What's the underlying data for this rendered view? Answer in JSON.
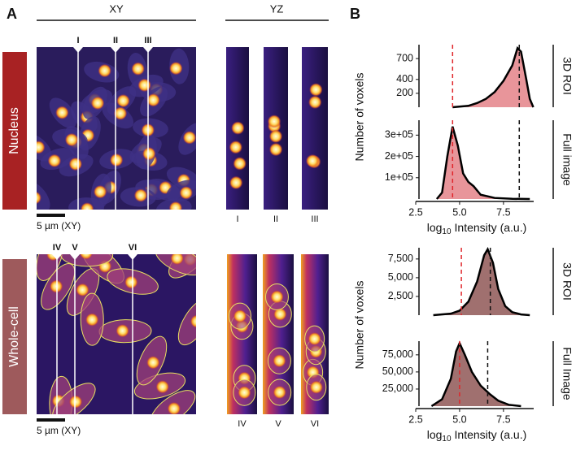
{
  "panel_labels": [
    "A",
    "B"
  ],
  "left": {
    "xy_label": "XY",
    "yz_label": "YZ",
    "rows": [
      {
        "label": "Nucleus",
        "scale_bar": "5 µm (XY)",
        "xy_markers": [
          "I",
          "II",
          "III"
        ],
        "yz_labels": [
          "I",
          "II",
          "III"
        ]
      },
      {
        "label": "Whole-cell",
        "scale_bar": "5 µm (XY)",
        "xy_markers": [
          "IV",
          "V",
          "VI"
        ],
        "yz_labels": [
          "IV",
          "V",
          "VI"
        ]
      }
    ]
  },
  "chart_data": [
    {
      "type": "area",
      "y_label": "Number of voxels",
      "side_label": "3D ROI",
      "color": "#e8959a",
      "x": [
        4.6,
        5.5,
        6.0,
        6.5,
        7.0,
        7.5,
        8.0,
        8.3,
        8.5,
        8.8,
        9.0,
        9.2
      ],
      "values": [
        0,
        20,
        60,
        120,
        220,
        380,
        600,
        850,
        800,
        400,
        120,
        0
      ],
      "xlim": [
        2.5,
        9.5
      ],
      "ylim": [
        0,
        900
      ],
      "yticks": [
        200,
        400,
        700
      ],
      "reference_lines": [
        {
          "value": 4.6,
          "color": "#e0262b"
        },
        {
          "value": 8.4,
          "color": "#111111"
        }
      ]
    },
    {
      "type": "area",
      "side_label": "Full image",
      "color": "#e8959a",
      "x": [
        3.7,
        4.0,
        4.3,
        4.6,
        4.9,
        5.2,
        5.5,
        5.8,
        6.2,
        7.0,
        8.0,
        9.0
      ],
      "values": [
        0,
        30000,
        200000,
        340000,
        250000,
        120000,
        80000,
        60000,
        20000,
        5000,
        1000,
        0
      ],
      "xlim": [
        2.5,
        9.5
      ],
      "ylim": [
        0,
        370000
      ],
      "yticks": [
        {
          "value": 100000,
          "label": "1e+05"
        },
        {
          "value": 200000,
          "label": "2e+05"
        },
        {
          "value": 300000,
          "label": "3e+05"
        }
      ],
      "xticks": [
        2.5,
        {
          "value": 5,
          "label": "5.0"
        },
        7.5
      ],
      "x_label": {
        "prefix": "log",
        "sub": "10",
        "suffix": "Intensity (a.u.)"
      },
      "reference_lines": [
        {
          "value": 4.6,
          "color": "#e0262b"
        },
        {
          "value": 8.4,
          "color": "#111111"
        }
      ]
    },
    {
      "type": "area",
      "y_label": "Number of voxels",
      "side_label": "3D ROI",
      "color": "#a0706f",
      "x": [
        3.5,
        4.5,
        5.0,
        5.5,
        6.0,
        6.4,
        6.6,
        6.9,
        7.2,
        7.6,
        8.0,
        8.5,
        9.0
      ],
      "values": [
        0,
        200,
        600,
        1800,
        4500,
        8000,
        8800,
        7000,
        3500,
        1200,
        400,
        100,
        0
      ],
      "xlim": [
        2.5,
        9.5
      ],
      "ylim": [
        0,
        9000
      ],
      "yticks": [
        {
          "value": 2500,
          "label": "2,500"
        },
        {
          "value": 5000,
          "label": "5,000"
        },
        {
          "value": 7500,
          "label": "7,500"
        }
      ],
      "reference_lines": [
        {
          "value": 5.1,
          "color": "#e0262b"
        },
        {
          "value": 6.75,
          "color": "#111111"
        }
      ]
    },
    {
      "type": "area",
      "side_label": "Full Image",
      "color": "#a0706f",
      "x": [
        3.4,
        4.0,
        4.5,
        4.8,
        5.0,
        5.3,
        5.7,
        6.2,
        6.7,
        7.2,
        7.8,
        8.5
      ],
      "values": [
        0,
        10000,
        40000,
        80000,
        92000,
        75000,
        50000,
        30000,
        18000,
        8000,
        2000,
        0
      ],
      "xlim": [
        2.5,
        9.5
      ],
      "ylim": [
        0,
        95000
      ],
      "yticks": [
        {
          "value": 25000,
          "label": "25,000"
        },
        {
          "value": 50000,
          "label": "50,000"
        },
        {
          "value": 75000,
          "label": "75,000"
        }
      ],
      "xticks": [
        2.5,
        {
          "value": 5,
          "label": "5.0"
        },
        7.5
      ],
      "x_label": {
        "prefix": "log",
        "sub": "10",
        "suffix": "Intensity (a.u.)"
      },
      "reference_lines": [
        {
          "value": 5.0,
          "color": "#e0262b"
        },
        {
          "value": 6.6,
          "color": "#111111"
        }
      ]
    }
  ]
}
